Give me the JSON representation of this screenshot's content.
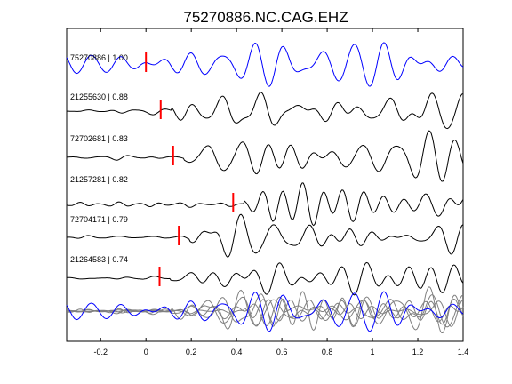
{
  "chart_data": {
    "type": "line",
    "title": "75270886.NC.CAG.EHZ",
    "xlabel": "",
    "ylabel": "",
    "xlim": [
      -0.35,
      1.4
    ],
    "x_ticks": [
      -0.2,
      0,
      0.2,
      0.4,
      0.6,
      0.8,
      1,
      1.2,
      1.4
    ],
    "x_tick_labels": [
      "-0.2",
      "0",
      "0.2",
      "0.4",
      "0.6",
      "0.8",
      "1",
      "1.2",
      "1.4"
    ],
    "y_ticks_shown": false,
    "grid": false,
    "traces": [
      {
        "label": "75270886 | 1.00",
        "event_id": "75270886",
        "correlation": 1.0,
        "pick_time": 0.0,
        "color": "#0000ff",
        "is_reference": true
      },
      {
        "label": "21255630 | 0.88",
        "event_id": "21255630",
        "correlation": 0.88,
        "pick_time": 0.065,
        "color": "#000000",
        "is_reference": false
      },
      {
        "label": "72702681 | 0.83",
        "event_id": "72702681",
        "correlation": 0.83,
        "pick_time": 0.12,
        "color": "#000000",
        "is_reference": false
      },
      {
        "label": "21257281 | 0.82",
        "event_id": "21257281",
        "correlation": 0.82,
        "pick_time": 0.385,
        "color": "#000000",
        "is_reference": false
      },
      {
        "label": "72704171 | 0.79",
        "event_id": "72704171",
        "correlation": 0.79,
        "pick_time": 0.145,
        "color": "#000000",
        "is_reference": false
      },
      {
        "label": "21264583 | 0.74",
        "event_id": "21264583",
        "correlation": 0.74,
        "pick_time": 0.06,
        "color": "#000000",
        "is_reference": false
      }
    ],
    "stack": {
      "label": "",
      "reference_color": "#0000ff",
      "other_color": "#808080"
    },
    "pick_color": "#ff0000"
  }
}
